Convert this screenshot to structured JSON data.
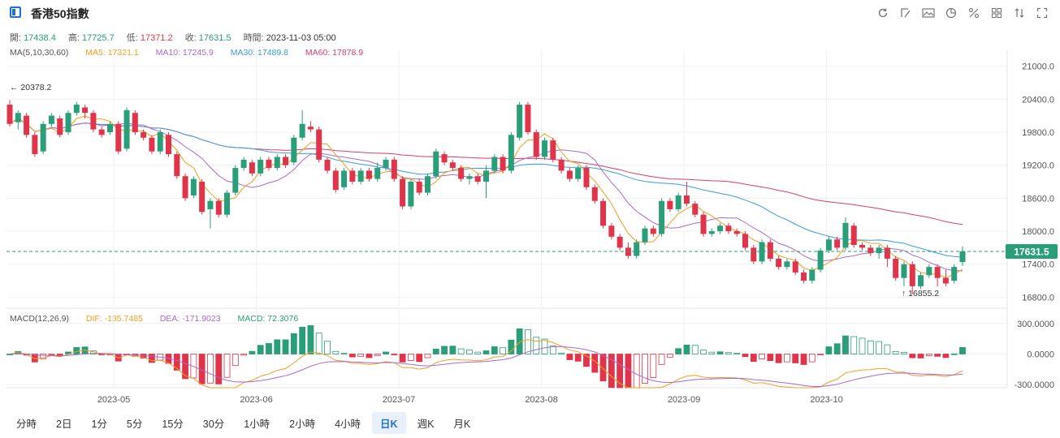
{
  "header": {
    "title": "香港50指數",
    "tools": [
      "refresh-icon",
      "draw-icon",
      "image-icon",
      "pie-icon",
      "percent-icon",
      "grid-icon",
      "sort-icon",
      "fullscreen-icon"
    ]
  },
  "info": {
    "open_label": "開:",
    "open": "17438.4",
    "high_label": "高:",
    "high": "17725.7",
    "low_label": "低:",
    "low": "17371.2",
    "close_label": "收:",
    "close": "17631.5",
    "time_label": "時間:",
    "time": "2023-11-03 05:00"
  },
  "ma": {
    "label": "MA(5,10,30,60)",
    "ma5": "MA5: 17321.1",
    "ma10": "MA10: 17245.9",
    "ma30": "MA30: 17489.8",
    "ma60": "MA60: 17878.9"
  },
  "macd": {
    "label": "MACD(12,26,9)",
    "dif": "DIF: -135.7485",
    "dea": "DEA: -171.9023",
    "macd": "MACD: 72.3076"
  },
  "colors": {
    "up": "#2a9d79",
    "down": "#e0344a",
    "ma5": "#f0a020",
    "ma10": "#a86bcc",
    "ma30": "#3b9ce0",
    "ma60": "#d83c78"
  },
  "chart_data": {
    "type": "candlestick",
    "ylim": [
      16600,
      21200
    ],
    "yticks": [
      "21000.0",
      "20400.0",
      "19800.0",
      "19200.0",
      "18600.0",
      "18000.0",
      "17400.0",
      "16800.0"
    ],
    "ytick_values": [
      21000,
      20400,
      19800,
      19200,
      18600,
      18000,
      17400,
      16800
    ],
    "xticks": [
      "2023-05",
      "2023-06",
      "2023-07",
      "2023-08",
      "2023-09",
      "2023-10"
    ],
    "last_price": "17631.5",
    "max_annotation": "20378.2",
    "min_annotation": "16855.2",
    "macd_yticks": [
      "300.0000",
      "0.0000",
      "-300.0000"
    ],
    "macd_ytick_values": [
      300,
      0,
      -300
    ],
    "candles": [
      [
        20300,
        19950,
        20380,
        19900
      ],
      [
        19980,
        20150,
        20200,
        19850
      ],
      [
        20100,
        19750,
        20150,
        19700
      ],
      [
        19750,
        19400,
        19800,
        19350
      ],
      [
        19450,
        19950,
        20000,
        19400
      ],
      [
        19950,
        20100,
        20150,
        19900
      ],
      [
        20050,
        19750,
        20100,
        19700
      ],
      [
        19800,
        20150,
        20200,
        19750
      ],
      [
        20150,
        20300,
        20350,
        20100
      ],
      [
        20250,
        20150,
        20300,
        20050
      ],
      [
        20150,
        19850,
        20200,
        19800
      ],
      [
        19850,
        19750,
        19900,
        19700
      ],
      [
        19800,
        19950,
        20000,
        19750
      ],
      [
        19950,
        19450,
        20000,
        19400
      ],
      [
        19500,
        20200,
        20250,
        19450
      ],
      [
        20150,
        19800,
        20200,
        19750
      ],
      [
        19800,
        19700,
        19850,
        19650
      ],
      [
        19700,
        19450,
        19750,
        19400
      ],
      [
        19450,
        19800,
        19850,
        19400
      ],
      [
        19750,
        19400,
        19800,
        19350
      ],
      [
        19400,
        19000,
        19450,
        18950
      ],
      [
        19000,
        18600,
        19050,
        18550
      ],
      [
        18650,
        18950,
        19000,
        18600
      ],
      [
        18900,
        18350,
        18950,
        18300
      ],
      [
        18400,
        18550,
        18600,
        18050
      ],
      [
        18550,
        18300,
        18600,
        18250
      ],
      [
        18300,
        18700,
        18750,
        18250
      ],
      [
        18700,
        19150,
        19200,
        18650
      ],
      [
        19150,
        19300,
        19350,
        19100
      ],
      [
        19250,
        19050,
        19300,
        19000
      ],
      [
        19050,
        19300,
        19350,
        19000
      ],
      [
        19300,
        19150,
        19350,
        19100
      ],
      [
        19150,
        19350,
        19400,
        19100
      ],
      [
        19350,
        19200,
        19400,
        19150
      ],
      [
        19250,
        19700,
        19750,
        19200
      ],
      [
        19700,
        19950,
        20200,
        19650
      ],
      [
        19900,
        19850,
        20000,
        19800
      ],
      [
        19850,
        19300,
        19900,
        19250
      ],
      [
        19300,
        19100,
        19350,
        19050
      ],
      [
        19100,
        18750,
        19150,
        18700
      ],
      [
        18800,
        19100,
        19150,
        18750
      ],
      [
        19100,
        18900,
        19150,
        18850
      ],
      [
        18900,
        19100,
        19150,
        18850
      ],
      [
        19100,
        18950,
        19150,
        18900
      ],
      [
        18950,
        19150,
        19250,
        18900
      ],
      [
        19150,
        19300,
        19350,
        19100
      ],
      [
        19300,
        18950,
        19350,
        18900
      ],
      [
        18950,
        18450,
        19000,
        18400
      ],
      [
        18450,
        18900,
        18950,
        18400
      ],
      [
        18900,
        18700,
        18950,
        18650
      ],
      [
        18700,
        19000,
        19050,
        18650
      ],
      [
        19000,
        19450,
        19500,
        18950
      ],
      [
        19400,
        19250,
        19450,
        19200
      ],
      [
        19250,
        19150,
        19300,
        19100
      ],
      [
        19150,
        18950,
        19200,
        18900
      ],
      [
        18950,
        19000,
        19050,
        18850
      ],
      [
        19000,
        18900,
        19050,
        18850
      ],
      [
        18900,
        19100,
        19200,
        18600
      ],
      [
        19100,
        19350,
        19400,
        19050
      ],
      [
        19350,
        19100,
        19400,
        19050
      ],
      [
        19100,
        19750,
        19800,
        19050
      ],
      [
        19700,
        20300,
        20350,
        19650
      ],
      [
        20300,
        19800,
        20350,
        19750
      ],
      [
        19800,
        19350,
        19850,
        19300
      ],
      [
        19350,
        19650,
        19700,
        19300
      ],
      [
        19650,
        19300,
        19700,
        19250
      ],
      [
        19300,
        19100,
        19350,
        19050
      ],
      [
        19100,
        18950,
        19150,
        18900
      ],
      [
        18950,
        19150,
        19200,
        18900
      ],
      [
        19150,
        18800,
        19200,
        18750
      ],
      [
        18800,
        18550,
        18850,
        18500
      ],
      [
        18550,
        18100,
        18600,
        18050
      ],
      [
        18100,
        17900,
        18150,
        17850
      ],
      [
        17900,
        17700,
        17950,
        17650
      ],
      [
        17700,
        17550,
        17800,
        17500
      ],
      [
        17550,
        17800,
        17850,
        17500
      ],
      [
        17800,
        18050,
        18100,
        17750
      ],
      [
        18050,
        17950,
        18100,
        17900
      ],
      [
        17950,
        18550,
        18600,
        17900
      ],
      [
        18550,
        18400,
        18600,
        18350
      ],
      [
        18400,
        18650,
        18700,
        18350
      ],
      [
        18650,
        18500,
        18900,
        18450
      ],
      [
        18500,
        18300,
        18550,
        18250
      ],
      [
        18300,
        17950,
        18350,
        17900
      ],
      [
        17950,
        18000,
        18050,
        17900
      ],
      [
        18000,
        18100,
        18150,
        17950
      ],
      [
        18100,
        18000,
        18150,
        17950
      ],
      [
        18000,
        17950,
        18050,
        17900
      ],
      [
        17950,
        17700,
        18000,
        17650
      ],
      [
        17700,
        17450,
        17750,
        17400
      ],
      [
        17450,
        17800,
        17850,
        17400
      ],
      [
        17800,
        17500,
        17850,
        17450
      ],
      [
        17500,
        17350,
        17550,
        17300
      ],
      [
        17350,
        17450,
        17500,
        17300
      ],
      [
        17450,
        17250,
        17500,
        17200
      ],
      [
        17250,
        17100,
        17300,
        17050
      ],
      [
        17100,
        17300,
        17350,
        17050
      ],
      [
        17300,
        17650,
        17700,
        17250
      ],
      [
        17650,
        17850,
        17900,
        17600
      ],
      [
        17850,
        17700,
        17900,
        17650
      ],
      [
        17700,
        18150,
        18250,
        17650
      ],
      [
        18100,
        17750,
        18150,
        17700
      ],
      [
        17750,
        17700,
        17800,
        17650
      ],
      [
        17700,
        17600,
        17750,
        17550
      ],
      [
        17600,
        17700,
        17750,
        17500
      ],
      [
        17700,
        17500,
        17750,
        17350
      ],
      [
        17500,
        17150,
        17550,
        17100
      ],
      [
        17150,
        17400,
        17450,
        17000
      ],
      [
        17400,
        17000,
        17450,
        16855
      ],
      [
        17000,
        17200,
        17250,
        16950
      ],
      [
        17200,
        17350,
        17400,
        17150
      ],
      [
        17350,
        17150,
        17400,
        17000
      ],
      [
        17150,
        17050,
        17300,
        17000
      ],
      [
        17100,
        17350,
        17400,
        17050
      ],
      [
        17438.4,
        17631.5,
        17725.7,
        17371.2
      ]
    ]
  }
}
